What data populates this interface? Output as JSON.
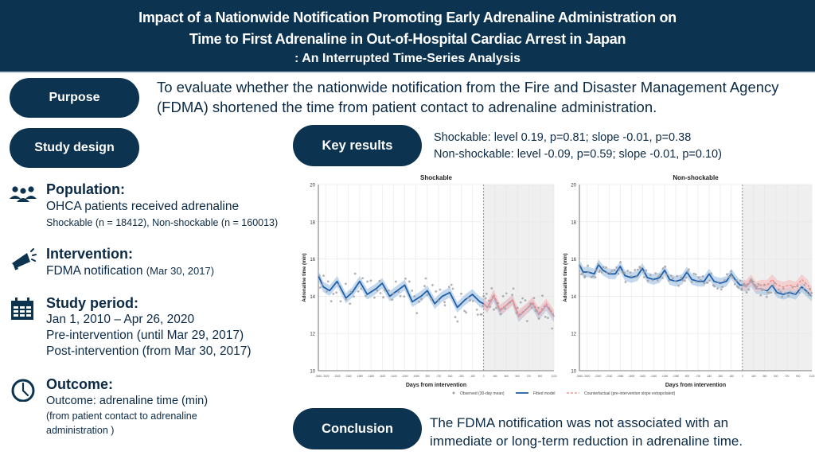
{
  "header": {
    "title_line1": "Impact of a Nationwide Notification Promoting Early Adrenaline Administration on",
    "title_line2": "Time to First Adrenaline in Out-of-Hospital Cardiac Arrest in Japan",
    "subtitle": ": An Interrupted Time-Series Analysis"
  },
  "purpose": {
    "label": "Purpose",
    "text": "To evaluate whether the nationwide notification from the Fire and Disaster Management Agency (FDMA) shortened the time from patient contact to adrenaline administration."
  },
  "study_design": {
    "label": "Study design"
  },
  "population": {
    "icon": "people-group-icon",
    "title": "Population:",
    "line1": "OHCA patients received adrenaline",
    "line2": "Shockable (n = 18412), Non-shockable (n =  160013)"
  },
  "intervention": {
    "icon": "megaphone-icon",
    "title": "Intervention:",
    "line1_main": "FDMA notification ",
    "line1_date": "(Mar 30, 2017)"
  },
  "study_period": {
    "icon": "calendar-icon",
    "title": "Study period:",
    "line1": "Jan 1, 2010 – Apr 26, 2020",
    "line2": "Pre-intervention (until Mar 29, 2017)",
    "line3": "Post-intervention (from Mar 30, 2017)"
  },
  "outcome": {
    "icon": "clock-icon",
    "title": "Outcome:",
    "line1": "Outcome: adrenaline time (min)",
    "line2": "(from patient contact to adrenaline",
    "line3": "administration )"
  },
  "key_results": {
    "label": "Key results",
    "line1": "Shockable: level 0.19, p=0.81; slope -0.01, p=0.38",
    "line2": "Non-shockable: level -0.09, p=0.59; slope -0.01, p=0.10)"
  },
  "conclusion": {
    "label": "Conclusion",
    "line1": "The FDMA notification was not associated with an",
    "line2": "immediate or long-term reduction in adrenaline time."
  },
  "colors": {
    "navy": "#0c3350",
    "fitted": "#1f5fa8",
    "fitted_band": "#a9c6e6",
    "counterfactual": "#f08080",
    "counterfactual_band": "#f7c5c5",
    "observed": "#a0a0a0",
    "post_shade": "#efefef"
  },
  "chart_data": [
    {
      "type": "line",
      "title": "Shockable",
      "xlabel": "Days from intervention",
      "ylabel": "Adrenaline time (min)",
      "xlim": [
        -2640,
        1123
      ],
      "ylim": [
        10,
        20
      ],
      "yticks": [
        10,
        12,
        14,
        16,
        18,
        20
      ],
      "xticks": [
        -2640,
        -2520,
        -2340,
        -2160,
        -1980,
        -1800,
        -1620,
        -1440,
        -1260,
        -1080,
        -900,
        -720,
        -540,
        -360,
        -180,
        0,
        180,
        360,
        540,
        720,
        900,
        1123
      ],
      "intervention_x": 0,
      "grid": true,
      "series": [
        {
          "name": "Fitted model",
          "x": [
            -2640,
            -2560,
            -2460,
            -2340,
            -2200,
            -2100,
            -1980,
            -1860,
            -1720,
            -1620,
            -1500,
            -1380,
            -1260,
            -1140,
            -1000,
            -900,
            -780,
            -660,
            -540,
            -420,
            -300,
            -180,
            -60,
            0,
            60,
            160,
            260,
            360,
            460,
            560,
            680,
            780,
            880,
            1000,
            1123
          ],
          "values": [
            15.1,
            14.5,
            14.3,
            14.8,
            13.9,
            14.2,
            14.8,
            14.1,
            14.4,
            14.7,
            14.0,
            14.3,
            14.6,
            13.7,
            14.0,
            14.3,
            13.6,
            14.0,
            14.2,
            13.4,
            13.8,
            14.1,
            13.7,
            13.6,
            13.4,
            14.0,
            13.2,
            13.5,
            13.8,
            12.9,
            13.3,
            13.6,
            13.0,
            13.5,
            12.9
          ]
        },
        {
          "name": "Counterfactual (pre-intervention slope extrapolated)",
          "x": [
            0,
            60,
            160,
            260,
            360,
            460,
            560,
            680,
            780,
            880,
            1000,
            1123
          ],
          "values": [
            13.6,
            13.4,
            14.1,
            13.3,
            13.5,
            13.8,
            13.0,
            13.3,
            13.7,
            13.1,
            13.6,
            13.0
          ]
        }
      ],
      "observed_label": "Observed (30-day mean)"
    },
    {
      "type": "line",
      "title": "Non-shockable",
      "xlabel": "Days from intervention",
      "ylabel": "Adrenaline time (min)",
      "xlim": [
        -2640,
        1123
      ],
      "ylim": [
        10,
        20
      ],
      "yticks": [
        10,
        12,
        14,
        16,
        18,
        20
      ],
      "xticks": [
        -2640,
        -2520,
        -2340,
        -2160,
        -1980,
        -1800,
        -1620,
        -1440,
        -1260,
        -1080,
        -900,
        -720,
        -540,
        -360,
        -180,
        0,
        180,
        360,
        540,
        720,
        900,
        1123
      ],
      "intervention_x": 0,
      "grid": true,
      "series": [
        {
          "name": "Fitted model",
          "x": [
            -2640,
            -2580,
            -2500,
            -2400,
            -2330,
            -2260,
            -2160,
            -2060,
            -1980,
            -1900,
            -1800,
            -1700,
            -1620,
            -1540,
            -1440,
            -1340,
            -1260,
            -1180,
            -1080,
            -980,
            -900,
            -820,
            -720,
            -620,
            -540,
            -460,
            -360,
            -260,
            -180,
            -120,
            -40,
            0,
            60,
            140,
            220,
            300,
            400,
            480,
            560,
            660,
            760,
            860,
            960,
            1060,
            1123
          ],
          "values": [
            15.7,
            15.3,
            15.3,
            15.2,
            15.7,
            15.4,
            15.2,
            15.2,
            15.6,
            15.1,
            15.0,
            15.1,
            15.5,
            15.0,
            14.9,
            15.0,
            15.4,
            14.9,
            14.8,
            14.9,
            15.3,
            14.9,
            14.8,
            14.8,
            15.2,
            14.8,
            14.7,
            14.8,
            15.2,
            14.9,
            14.6,
            14.6,
            14.5,
            14.8,
            14.4,
            14.4,
            14.3,
            14.6,
            14.2,
            14.1,
            14.2,
            14.1,
            14.5,
            14.2,
            14.0
          ]
        },
        {
          "name": "Counterfactual (pre-intervention slope extrapolated)",
          "x": [
            0,
            60,
            140,
            220,
            300,
            400,
            480,
            560,
            660,
            760,
            860,
            960,
            1060,
            1123
          ],
          "values": [
            14.6,
            14.6,
            14.9,
            14.5,
            14.6,
            14.6,
            14.9,
            14.6,
            14.5,
            14.6,
            14.5,
            14.9,
            14.6,
            14.2
          ]
        }
      ],
      "observed_label": "Observed (30-day mean)"
    }
  ],
  "legend": {
    "observed": "Observed (30-day mean)",
    "fitted": "Fitted model",
    "counterfactual": "Counterfactual (pre-intervention slope extrapolated)"
  }
}
